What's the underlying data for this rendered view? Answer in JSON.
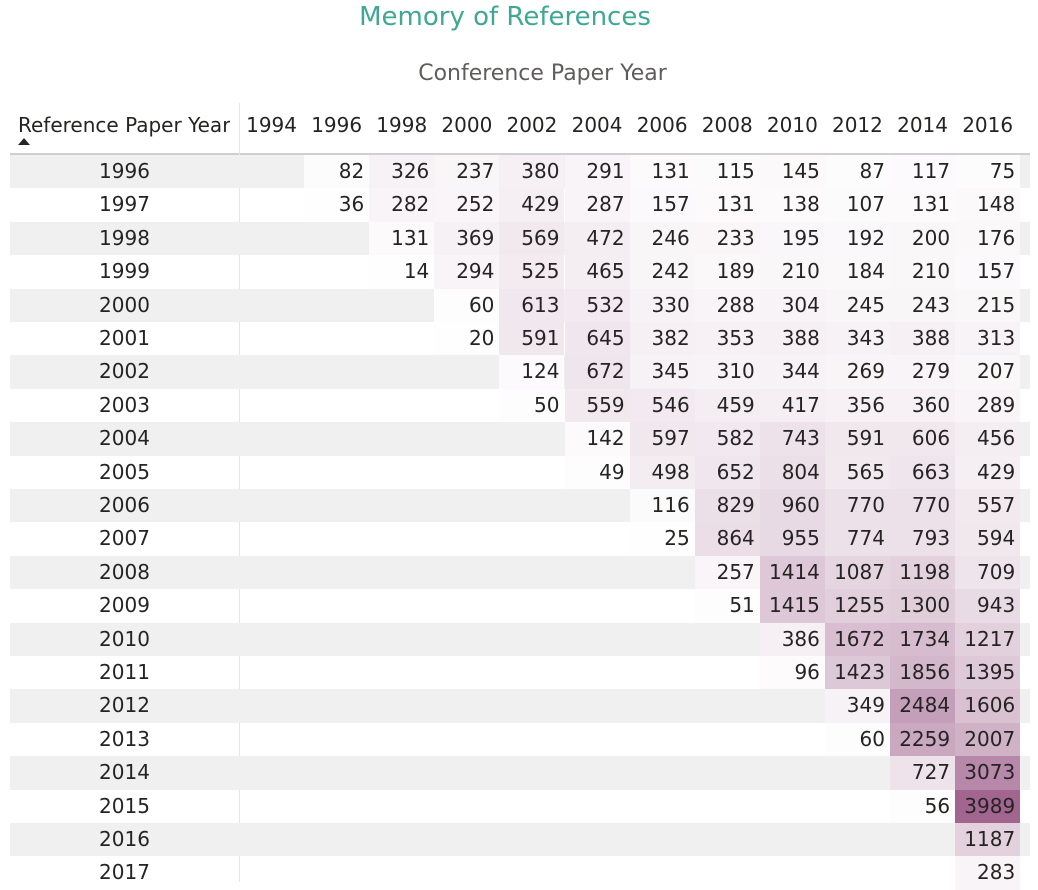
{
  "chart_data": {
    "type": "table",
    "title": "Memory of References",
    "column_header_title": "Conference Paper Year",
    "row_header_title": "Reference Paper Year",
    "sort_indicator": "ascending",
    "columns": [
      "1994",
      "1996",
      "1998",
      "2000",
      "2002",
      "2004",
      "2006",
      "2008",
      "2010",
      "2012",
      "2014",
      "2016"
    ],
    "rows": [
      {
        "label": "1996",
        "values": [
          null,
          82,
          326,
          237,
          380,
          291,
          131,
          115,
          145,
          87,
          117,
          75
        ]
      },
      {
        "label": "1997",
        "values": [
          null,
          36,
          282,
          252,
          429,
          287,
          157,
          131,
          138,
          107,
          131,
          148
        ]
      },
      {
        "label": "1998",
        "values": [
          null,
          null,
          131,
          369,
          569,
          472,
          246,
          233,
          195,
          192,
          200,
          176
        ]
      },
      {
        "label": "1999",
        "values": [
          null,
          null,
          14,
          294,
          525,
          465,
          242,
          189,
          210,
          184,
          210,
          157
        ]
      },
      {
        "label": "2000",
        "values": [
          null,
          null,
          null,
          60,
          613,
          532,
          330,
          288,
          304,
          245,
          243,
          215
        ]
      },
      {
        "label": "2001",
        "values": [
          null,
          null,
          null,
          20,
          591,
          645,
          382,
          353,
          388,
          343,
          388,
          313
        ]
      },
      {
        "label": "2002",
        "values": [
          null,
          null,
          null,
          null,
          124,
          672,
          345,
          310,
          344,
          269,
          279,
          207
        ]
      },
      {
        "label": "2003",
        "values": [
          null,
          null,
          null,
          null,
          50,
          559,
          546,
          459,
          417,
          356,
          360,
          289
        ]
      },
      {
        "label": "2004",
        "values": [
          null,
          null,
          null,
          null,
          null,
          142,
          597,
          582,
          743,
          591,
          606,
          456
        ]
      },
      {
        "label": "2005",
        "values": [
          null,
          null,
          null,
          null,
          null,
          49,
          498,
          652,
          804,
          565,
          663,
          429
        ]
      },
      {
        "label": "2006",
        "values": [
          null,
          null,
          null,
          null,
          null,
          null,
          116,
          829,
          960,
          770,
          770,
          557
        ]
      },
      {
        "label": "2007",
        "values": [
          null,
          null,
          null,
          null,
          null,
          null,
          25,
          864,
          955,
          774,
          793,
          594
        ]
      },
      {
        "label": "2008",
        "values": [
          null,
          null,
          null,
          null,
          null,
          null,
          null,
          257,
          1414,
          1087,
          1198,
          709
        ]
      },
      {
        "label": "2009",
        "values": [
          null,
          null,
          null,
          null,
          null,
          null,
          null,
          51,
          1415,
          1255,
          1300,
          943
        ]
      },
      {
        "label": "2010",
        "values": [
          null,
          null,
          null,
          null,
          null,
          null,
          null,
          null,
          386,
          1672,
          1734,
          1217
        ]
      },
      {
        "label": "2011",
        "values": [
          null,
          null,
          null,
          null,
          null,
          null,
          null,
          null,
          96,
          1423,
          1856,
          1395
        ]
      },
      {
        "label": "2012",
        "values": [
          null,
          null,
          null,
          null,
          null,
          null,
          null,
          null,
          null,
          349,
          2484,
          1606
        ]
      },
      {
        "label": "2013",
        "values": [
          null,
          null,
          null,
          null,
          null,
          null,
          null,
          null,
          null,
          60,
          2259,
          2007
        ]
      },
      {
        "label": "2014",
        "values": [
          null,
          null,
          null,
          null,
          null,
          null,
          null,
          null,
          null,
          null,
          727,
          3073
        ]
      },
      {
        "label": "2015",
        "values": [
          null,
          null,
          null,
          null,
          null,
          null,
          null,
          null,
          null,
          null,
          56,
          3989
        ]
      },
      {
        "label": "2016",
        "values": [
          null,
          null,
          null,
          null,
          null,
          null,
          null,
          null,
          null,
          null,
          null,
          1187
        ]
      },
      {
        "label": "2017",
        "values": [
          null,
          null,
          null,
          null,
          null,
          null,
          null,
          null,
          null,
          null,
          null,
          283
        ]
      }
    ],
    "color_scale": {
      "min": 0,
      "max": 3989,
      "low_color": "#ffffff",
      "high_color": "#a1658f"
    },
    "band_color": "#f0f0f0"
  }
}
